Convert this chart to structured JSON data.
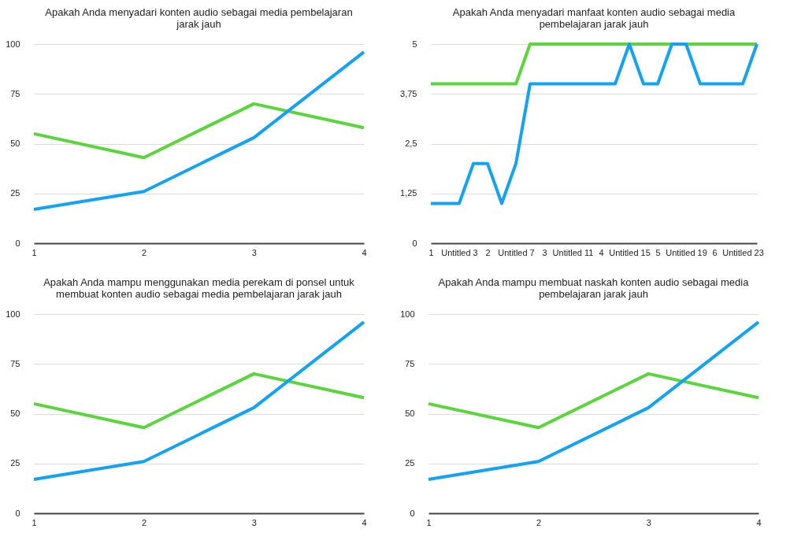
{
  "chart_data": [
    {
      "type": "line",
      "title": "Apakah Anda menyadari konten audio sebagai media pembelajaran jarak jauh",
      "x": [
        1,
        2,
        3,
        4
      ],
      "xlim": [
        1,
        4
      ],
      "xticks": [
        1,
        2,
        3,
        4
      ],
      "ylim": [
        0,
        100
      ],
      "yticks": [
        0,
        25,
        50,
        75,
        100
      ],
      "grid": "y",
      "series": [
        {
          "color": "#5ad63c",
          "values": [
            55,
            43,
            70,
            58
          ]
        },
        {
          "color": "#14a2f5",
          "values": [
            17,
            26,
            53,
            96
          ]
        }
      ]
    },
    {
      "type": "line",
      "title": "Apakah Anda menyadari manfaat konten audio sebagai media pembelajaran jarak jauh",
      "categories": [
        "1",
        null,
        "Untitled 3",
        null,
        "2",
        null,
        "Untitled 7",
        null,
        "3",
        null,
        "Untitled 11",
        null,
        "4",
        null,
        "Untitled 15",
        null,
        "5",
        null,
        "Untitled 19",
        null,
        "6",
        null,
        "Untitled 23",
        null
      ],
      "ylim": [
        0,
        5
      ],
      "yticks": [
        0,
        {
          "value": 1.25,
          "label": "1,25"
        },
        {
          "value": 2.5,
          "label": "2,5"
        },
        {
          "value": 3.75,
          "label": "3,75"
        },
        5
      ],
      "grid": "y",
      "series": [
        {
          "color": "#5ad63c",
          "values": [
            4,
            4,
            4,
            4,
            4,
            4,
            4,
            5,
            5,
            5,
            5,
            5,
            5,
            5,
            5,
            5,
            5,
            5,
            5,
            5,
            5,
            5,
            5,
            5
          ]
        },
        {
          "color": "#14a2f5",
          "values": [
            1,
            1,
            1,
            2,
            2,
            1,
            2,
            4,
            4,
            4,
            4,
            4,
            4,
            4,
            5,
            4,
            4,
            5,
            5,
            4,
            4,
            4,
            4,
            5
          ]
        }
      ]
    },
    {
      "type": "line",
      "title": "Apakah Anda mampu menggunakan media perekam  di ponsel untuk membuat konten audio sebagai media pembelajaran jarak jauh",
      "x": [
        1,
        2,
        3,
        4
      ],
      "xlim": [
        1,
        4
      ],
      "xticks": [
        1,
        2,
        3,
        4
      ],
      "ylim": [
        0,
        100
      ],
      "yticks": [
        0,
        25,
        50,
        75,
        100
      ],
      "grid": "y",
      "series": [
        {
          "color": "#5ad63c",
          "values": [
            55,
            43,
            70,
            58
          ]
        },
        {
          "color": "#14a2f5",
          "values": [
            17,
            26,
            53,
            96
          ]
        }
      ]
    },
    {
      "type": "line",
      "title": "Apakah Anda mampu membuat naskah konten audio sebagai media pembelajaran jarak jauh",
      "x": [
        1,
        2,
        3,
        4
      ],
      "xlim": [
        1,
        4
      ],
      "xticks": [
        1,
        2,
        3,
        4
      ],
      "ylim": [
        0,
        100
      ],
      "yticks": [
        0,
        25,
        50,
        75,
        100
      ],
      "grid": "y",
      "series": [
        {
          "color": "#5ad63c",
          "values": [
            55,
            43,
            70,
            58
          ]
        },
        {
          "color": "#14a2f5",
          "values": [
            17,
            26,
            53,
            96
          ]
        }
      ]
    }
  ]
}
